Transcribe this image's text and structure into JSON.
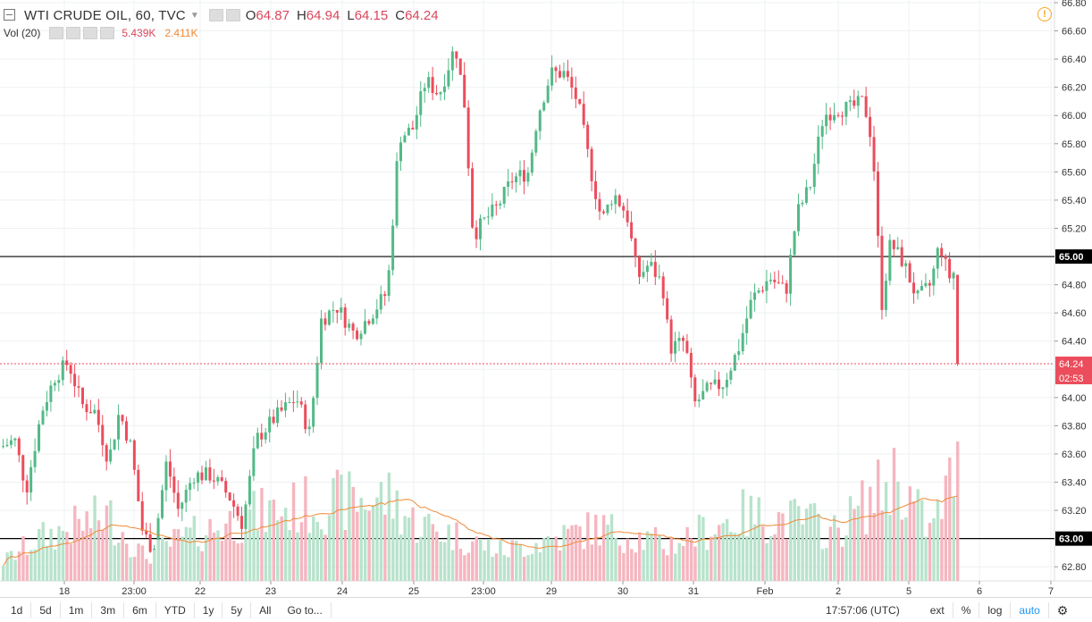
{
  "legend": {
    "symbol": "WTI CRUDE OIL, 60, TVC",
    "o_label": "O",
    "o_value": "64.87",
    "h_label": "H",
    "h_value": "64.94",
    "l_label": "L",
    "l_value": "64.15",
    "c_label": "C",
    "c_value": "64.24",
    "vol_label": "Vol (20)",
    "vol_value": "5.439K",
    "vol_ma_value": "2.411K"
  },
  "toolbar": {
    "ranges": [
      "1d",
      "5d",
      "1m",
      "3m",
      "6m",
      "YTD",
      "1y",
      "5y",
      "All"
    ],
    "goto": "Go to...",
    "time": "17:57:06 (UTC)",
    "ext": "ext",
    "percent": "%",
    "log": "log",
    "auto": "auto"
  },
  "colors": {
    "up": "#53b987",
    "down": "#eb4d5c",
    "vol_up": "#b8e3cc",
    "vol_down": "#f5b6bf",
    "vol_ma": "#f08a35",
    "price_line": "#eb4d5c"
  },
  "chart_data": {
    "type": "candlestick",
    "title": "WTI CRUDE OIL, 60, TVC",
    "ylim": [
      62.7,
      66.8
    ],
    "yticks": [
      62.8,
      63.0,
      63.2,
      63.4,
      63.6,
      63.8,
      64.0,
      64.2,
      64.4,
      64.6,
      64.8,
      65.0,
      65.2,
      65.4,
      65.6,
      65.8,
      66.0,
      66.2,
      66.4,
      66.6,
      66.8
    ],
    "ytick_labels": [
      "62.80",
      "63.20",
      "63.40",
      "63.60",
      "63.80",
      "64.00",
      "64.40",
      "64.60",
      "64.80",
      "65.20",
      "65.40",
      "65.60",
      "65.80",
      "66.00",
      "66.20",
      "66.40",
      "66.60",
      "66.80"
    ],
    "x_labels": [
      "18",
      "23:00",
      "22",
      "23",
      "24",
      "25",
      "23:00",
      "29",
      "30",
      "31",
      "Feb",
      "2",
      "5",
      "6",
      "7"
    ],
    "horizontal_lines": [
      {
        "value": 65.0,
        "label": "65.00"
      },
      {
        "value": 63.0,
        "label": "63.00"
      }
    ],
    "last_price": {
      "value": 64.24,
      "label": "64.24",
      "countdown": "02:53"
    },
    "close_path": [
      [
        0,
        63.65
      ],
      [
        15,
        63.7
      ],
      [
        28,
        63.35
      ],
      [
        45,
        63.9
      ],
      [
        60,
        64.15
      ],
      [
        75,
        64.25
      ],
      [
        90,
        63.95
      ],
      [
        105,
        63.9
      ],
      [
        120,
        63.55
      ],
      [
        132,
        63.9
      ],
      [
        145,
        63.65
      ],
      [
        158,
        63.05
      ],
      [
        170,
        62.92
      ],
      [
        185,
        63.55
      ],
      [
        198,
        63.2
      ],
      [
        215,
        63.45
      ],
      [
        235,
        63.45
      ],
      [
        255,
        63.3
      ],
      [
        270,
        63.1
      ],
      [
        285,
        63.7
      ],
      [
        305,
        63.85
      ],
      [
        330,
        64.0
      ],
      [
        345,
        63.75
      ],
      [
        358,
        64.55
      ],
      [
        375,
        64.65
      ],
      [
        395,
        64.45
      ],
      [
        415,
        64.6
      ],
      [
        432,
        64.75
      ],
      [
        445,
        65.85
      ],
      [
        460,
        65.9
      ],
      [
        475,
        66.25
      ],
      [
        490,
        66.15
      ],
      [
        508,
        66.5
      ],
      [
        518,
        66.1
      ],
      [
        528,
        65.15
      ],
      [
        540,
        65.25
      ],
      [
        555,
        65.35
      ],
      [
        572,
        65.55
      ],
      [
        590,
        65.6
      ],
      [
        600,
        66.0
      ],
      [
        615,
        66.3
      ],
      [
        630,
        66.3
      ],
      [
        645,
        66.1
      ],
      [
        660,
        65.6
      ],
      [
        672,
        65.25
      ],
      [
        685,
        65.45
      ],
      [
        700,
        65.3
      ],
      [
        712,
        64.85
      ],
      [
        725,
        64.95
      ],
      [
        740,
        64.8
      ],
      [
        748,
        64.35
      ],
      [
        765,
        64.4
      ],
      [
        775,
        63.95
      ],
      [
        790,
        64.05
      ],
      [
        808,
        64.1
      ],
      [
        825,
        64.35
      ],
      [
        840,
        64.7
      ],
      [
        860,
        64.85
      ],
      [
        878,
        64.75
      ],
      [
        890,
        65.3
      ],
      [
        905,
        65.5
      ],
      [
        920,
        66.0
      ],
      [
        935,
        66.05
      ],
      [
        950,
        66.05
      ],
      [
        965,
        66.1
      ],
      [
        975,
        65.8
      ],
      [
        985,
        64.65
      ],
      [
        995,
        65.1
      ],
      [
        1010,
        64.95
      ],
      [
        1025,
        64.7
      ],
      [
        1040,
        64.8
      ],
      [
        1050,
        65.1
      ],
      [
        1060,
        64.85
      ],
      [
        1068,
        64.9
      ],
      [
        1075,
        64.24
      ]
    ],
    "volume_profile": [
      [
        0,
        0.15
      ],
      [
        40,
        0.35
      ],
      [
        120,
        0.55
      ],
      [
        160,
        0.2
      ],
      [
        200,
        0.35
      ],
      [
        280,
        0.55
      ],
      [
        355,
        0.65
      ],
      [
        435,
        0.7
      ],
      [
        460,
        0.5
      ],
      [
        560,
        0.25
      ],
      [
        668,
        0.45
      ],
      [
        745,
        0.3
      ],
      [
        828,
        0.55
      ],
      [
        905,
        0.5
      ],
      [
        930,
        0.4
      ],
      [
        990,
        0.8
      ],
      [
        1000,
        0.9
      ],
      [
        1040,
        0.4
      ],
      [
        1068,
        0.95
      ],
      [
        1075,
        0.85
      ]
    ]
  }
}
